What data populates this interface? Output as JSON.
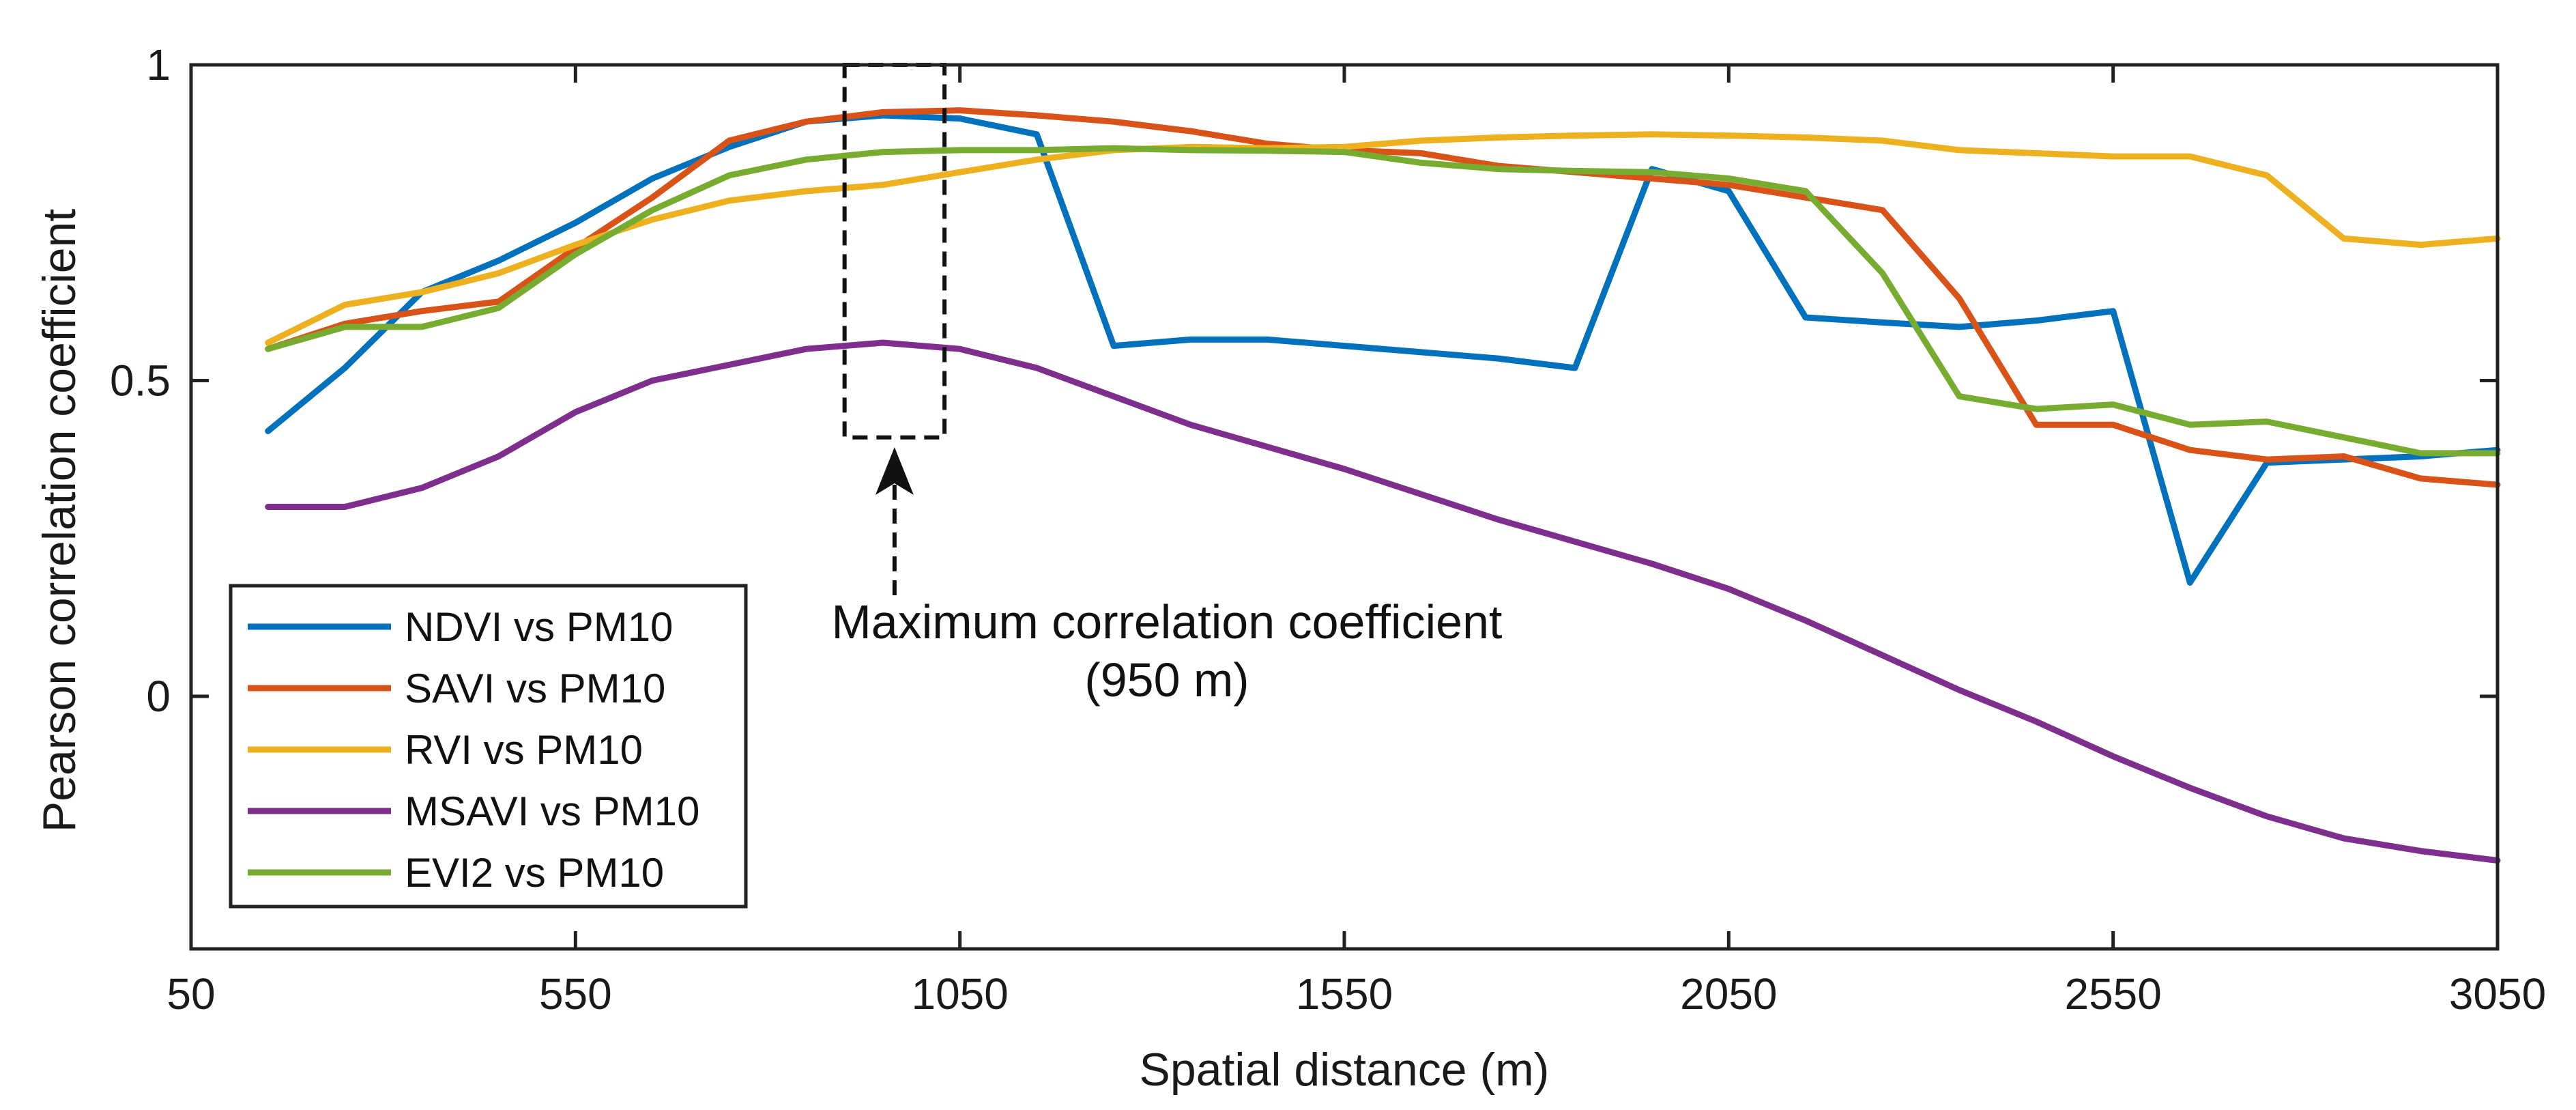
{
  "chart_data": {
    "type": "line",
    "title": "",
    "xlabel": "Spatial distance (m)",
    "ylabel": "Pearson correlation coefficient",
    "xlim": [
      50,
      3050
    ],
    "ylim": [
      -0.4,
      1
    ],
    "xticks": [
      50,
      550,
      1050,
      1550,
      2050,
      2550,
      3050
    ],
    "xtick_labels": [
      "50",
      "550",
      "1050",
      "1550",
      "2050",
      "2550",
      "3050"
    ],
    "yticks": [
      0,
      0.5,
      1
    ],
    "ytick_labels": [
      "0",
      "0.5",
      "1"
    ],
    "grid": false,
    "legend_position": "bottom-left",
    "x": [
      150,
      250,
      350,
      450,
      550,
      650,
      750,
      850,
      950,
      1050,
      1150,
      1250,
      1350,
      1450,
      1550,
      1650,
      1750,
      1850,
      1950,
      2050,
      2150,
      2250,
      2350,
      2450,
      2550,
      2650,
      2750,
      2850,
      2950,
      3050
    ],
    "series": [
      {
        "name": "NDVI vs PM10",
        "color": "#0072BD",
        "values": [
          0.42,
          0.52,
          0.64,
          0.69,
          0.75,
          0.82,
          0.87,
          0.91,
          0.92,
          0.915,
          0.89,
          0.555,
          0.565,
          0.565,
          0.555,
          0.545,
          0.535,
          0.52,
          0.835,
          0.8,
          0.6,
          0.592,
          0.585,
          0.595,
          0.61,
          0.18,
          0.37,
          0.375,
          0.38,
          0.39
        ]
      },
      {
        "name": "SAVI vs PM10",
        "color": "#D95319",
        "values": [
          0.55,
          0.59,
          0.61,
          0.625,
          0.71,
          0.79,
          0.88,
          0.91,
          0.925,
          0.928,
          0.92,
          0.91,
          0.895,
          0.875,
          0.865,
          0.86,
          0.84,
          0.83,
          0.82,
          0.81,
          0.79,
          0.77,
          0.63,
          0.43,
          0.43,
          0.39,
          0.375,
          0.38,
          0.345,
          0.335
        ]
      },
      {
        "name": "RVI vs PM10",
        "color": "#EDB120",
        "values": [
          0.56,
          0.62,
          0.64,
          0.67,
          0.715,
          0.755,
          0.785,
          0.8,
          0.81,
          0.83,
          0.85,
          0.865,
          0.87,
          0.868,
          0.87,
          0.88,
          0.885,
          0.888,
          0.89,
          0.888,
          0.885,
          0.88,
          0.865,
          0.86,
          0.855,
          0.855,
          0.825,
          0.725,
          0.715,
          0.725
        ]
      },
      {
        "name": "MSAVI vs PM10",
        "color": "#7E2F8E",
        "values": [
          0.3,
          0.3,
          0.33,
          0.38,
          0.45,
          0.5,
          0.525,
          0.55,
          0.56,
          0.55,
          0.52,
          0.475,
          0.43,
          0.395,
          0.36,
          0.32,
          0.28,
          0.245,
          0.21,
          0.17,
          0.12,
          0.065,
          0.01,
          -0.04,
          -0.095,
          -0.145,
          -0.19,
          -0.225,
          -0.245,
          -0.26
        ]
      },
      {
        "name": "EVI2 vs PM10",
        "color": "#77AC30",
        "values": [
          0.55,
          0.585,
          0.585,
          0.615,
          0.7,
          0.77,
          0.825,
          0.85,
          0.862,
          0.865,
          0.865,
          0.868,
          0.865,
          0.864,
          0.862,
          0.845,
          0.835,
          0.832,
          0.83,
          0.82,
          0.8,
          0.67,
          0.475,
          0.455,
          0.462,
          0.43,
          0.435,
          0.41,
          0.385,
          0.385
        ]
      }
    ],
    "annotation": {
      "text": "Maximum correlation coefficient",
      "subtext": "(950 m)",
      "box_x_range": [
        900,
        1030
      ],
      "box_y_range": [
        0.41,
        1.0
      ],
      "arrow_from_y": 0.16,
      "arrow_to_y": 0.4,
      "arrow_x": 965
    }
  }
}
